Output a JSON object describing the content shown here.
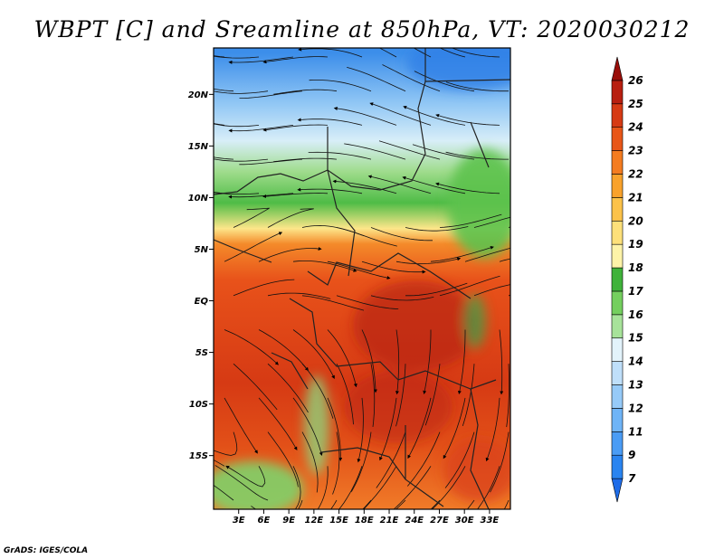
{
  "title": "WBPT [C] and Sreamline at 850hPa, VT: 2020030212",
  "credit": "GrADS: IGES/COLA",
  "lat_ticks": [
    "20N",
    "15N",
    "10N",
    "5N",
    "EQ",
    "5S",
    "10S",
    "15S"
  ],
  "lon_ticks": [
    "3E",
    "6E",
    "9E",
    "12E",
    "15E",
    "18E",
    "21E",
    "24E",
    "27E",
    "30E",
    "33E"
  ],
  "colorbar": {
    "labels": [
      "7",
      "9",
      "11",
      "12",
      "13",
      "14",
      "15",
      "16",
      "17",
      "18",
      "19",
      "20",
      "21",
      "22",
      "23",
      "24",
      "25",
      "26"
    ],
    "colors": [
      "#1e6ce8",
      "#2a84f0",
      "#4a9cf5",
      "#6fb4f7",
      "#96caf8",
      "#bfdffa",
      "#e3f3fb",
      "#a7e39a",
      "#74cf5e",
      "#3fb23a",
      "#fdf3a8",
      "#fde07a",
      "#fcc24a",
      "#f9a22c",
      "#f47c20",
      "#e85618",
      "#d63a14",
      "#b81f10",
      "#9a0e0a"
    ]
  },
  "map": {
    "field_stops": [
      {
        "lat": 24,
        "color": "#3c8eea"
      },
      {
        "lat": 19,
        "color": "#93c8f5"
      },
      {
        "lat": 15.5,
        "color": "#d8eef8"
      },
      {
        "lat": 12.5,
        "color": "#9fdc8c"
      },
      {
        "lat": 9.5,
        "color": "#4fbc46"
      },
      {
        "lat": 7,
        "color": "#fde68a"
      },
      {
        "lat": 5.5,
        "color": "#f48a2a"
      },
      {
        "lat": 2,
        "color": "#e8521a"
      },
      {
        "lat": -8,
        "color": "#d63a14"
      },
      {
        "lat": -14,
        "color": "#e25018"
      },
      {
        "lat": -20,
        "color": "#f07a28"
      }
    ]
  }
}
